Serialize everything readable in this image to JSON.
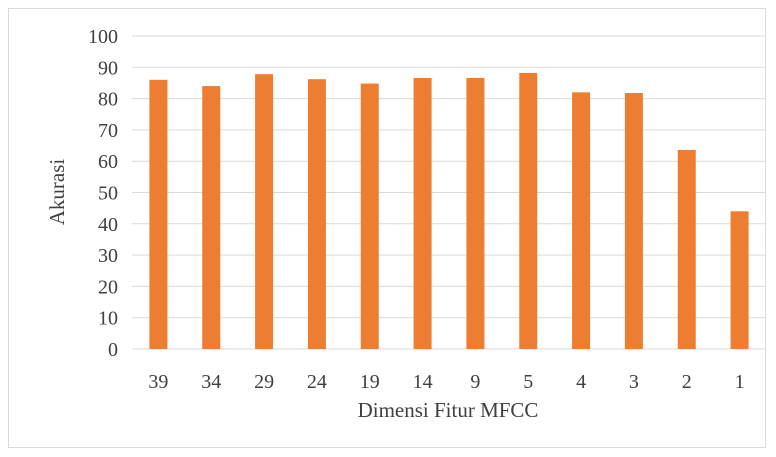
{
  "chart_data": {
    "type": "bar",
    "title": "",
    "xlabel": "Dimensi Fitur MFCC",
    "ylabel": "Akurasi",
    "categories": [
      "39",
      "34",
      "29",
      "24",
      "19",
      "14",
      "9",
      "5",
      "4",
      "3",
      "2",
      "1"
    ],
    "values": [
      86,
      84,
      87.8,
      86.2,
      84.8,
      86.6,
      86.6,
      88.2,
      82,
      81.8,
      63.6,
      44
    ],
    "ylim": [
      0,
      100
    ],
    "yticks": [
      "0",
      "10",
      "20",
      "30",
      "40",
      "50",
      "60",
      "70",
      "80",
      "90",
      "100"
    ],
    "grid": true,
    "legend": "none",
    "bar_color": "#ED7D31",
    "grid_color": "#d9d9d9"
  }
}
